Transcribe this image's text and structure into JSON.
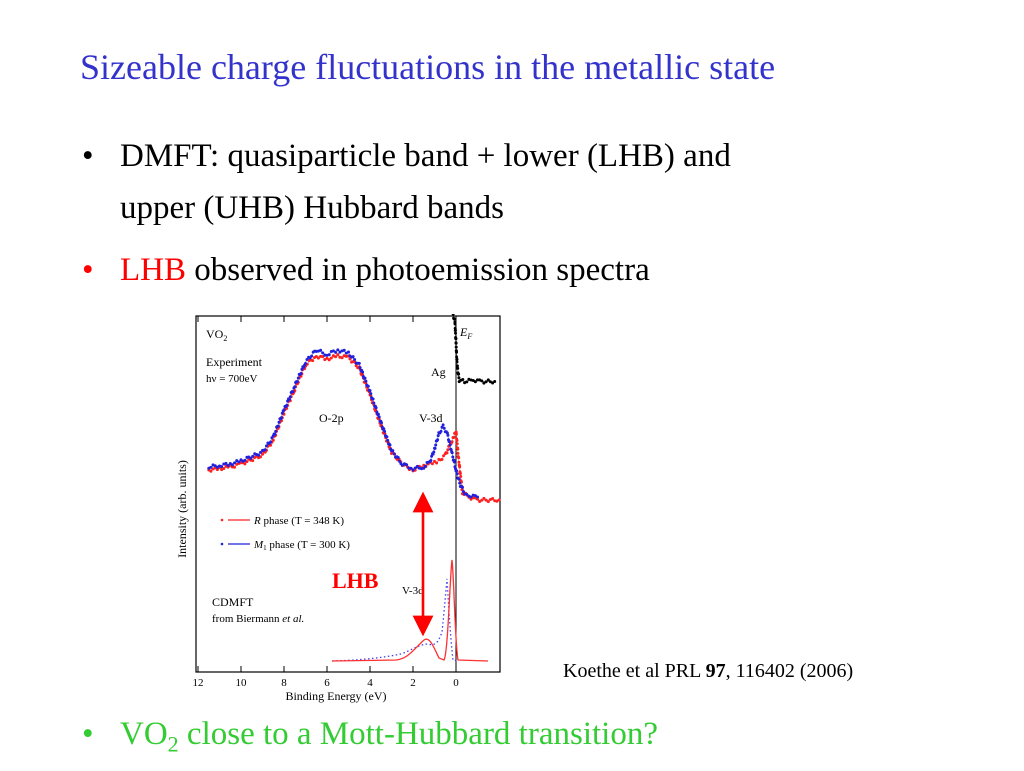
{
  "slide": {
    "title": "Sizeable charge fluctuations in the metallic state",
    "bullet1_line1": "DMFT: quasiparticle band + lower (LHB) and",
    "bullet1_line2": "upper (UHB) Hubbard bands",
    "bullet2_red": "LHB",
    "bullet2_rest": " observed in photoemission spectra",
    "bullet3_pre": "VO",
    "bullet3_sub": "2",
    "bullet3_post": " close to a Mott-Hubbard transition?",
    "bullet_glyph": "•",
    "citation_pre": "Koethe et al PRL ",
    "citation_bold": "97",
    "citation_post": ", 116402 (2006)"
  },
  "chart_data": {
    "type": "line",
    "xlabel": "Binding Energy (eV)",
    "ylabel": "Intensity (arb. units)",
    "xlim": [
      12,
      -2.5
    ],
    "x_ticks": [
      12,
      10,
      8,
      6,
      4,
      2,
      0
    ],
    "x_reversed": true,
    "annotations": {
      "material": "VO",
      "material_sub": "2",
      "experiment": "Experiment",
      "photon": "hν = 700eV",
      "o2p": "O-2p",
      "v3d": "V-3d",
      "v3d_theory": "V-3d",
      "ag": "Ag",
      "fermi": "E",
      "fermi_sub": "F",
      "cdmft": "CDMFT",
      "from": "from Biermann ",
      "etal": "et al.",
      "lhb": "LHB"
    },
    "legend": [
      {
        "symbol": "R",
        "text": " phase (T = 348 K)",
        "color": "#ff2020"
      },
      {
        "symbol": "M",
        "symbol_sub": "1",
        "text": " phase (T = 300 K)",
        "color": "#2020dd"
      }
    ],
    "series": [
      {
        "name": "R phase (T = 348 K)",
        "color": "#ff2020",
        "style": "dots",
        "x": [
          11.5,
          11,
          10.5,
          10,
          9,
          8.5,
          8,
          7.5,
          7,
          6.5,
          6,
          5.5,
          5,
          4.5,
          4,
          3.5,
          3,
          2.5,
          2,
          1.5,
          1,
          0.8,
          0.5,
          0.3,
          0.1,
          0,
          -0.1,
          -0.3,
          -0.6,
          -1,
          -2
        ],
        "y": [
          0.2,
          0.21,
          0.22,
          0.24,
          0.3,
          0.4,
          0.58,
          0.74,
          0.9,
          0.96,
          0.94,
          0.96,
          0.95,
          0.88,
          0.7,
          0.5,
          0.32,
          0.24,
          0.2,
          0.23,
          0.25,
          0.26,
          0.3,
          0.36,
          0.42,
          0.46,
          0.3,
          0.05,
          0.02,
          0.0,
          0.0
        ]
      },
      {
        "name": "M1 phase (T = 300 K)",
        "color": "#2020dd",
        "style": "dots",
        "x": [
          11.5,
          11,
          10.5,
          10,
          9,
          8.5,
          8,
          7.5,
          7,
          6.5,
          6,
          5.5,
          5,
          4.5,
          4,
          3.5,
          3,
          2.5,
          2,
          1.5,
          1.2,
          1,
          0.8,
          0.6,
          0.4,
          0.2,
          0,
          -0.2,
          -0.4,
          -0.6,
          -1
        ],
        "y": [
          0.22,
          0.23,
          0.24,
          0.26,
          0.32,
          0.42,
          0.6,
          0.76,
          0.92,
          1.0,
          0.97,
          1.0,
          0.98,
          0.9,
          0.72,
          0.52,
          0.33,
          0.24,
          0.21,
          0.22,
          0.26,
          0.34,
          0.44,
          0.49,
          0.44,
          0.32,
          0.2,
          0.1,
          0.05,
          0.03,
          0.02
        ]
      },
      {
        "name": "Ag",
        "color": "#000000",
        "style": "dots",
        "x": [
          2.1,
          1.6,
          1.2,
          0.8,
          0.5,
          0.3,
          0.15,
          0.05,
          0,
          -0.05,
          -0.15,
          -0.4,
          -0.8,
          -1.2,
          -1.8
        ],
        "y": [
          1.3,
          1.3,
          1.31,
          1.3,
          1.29,
          1.28,
          1.25,
          1.18,
          1.05,
          0.9,
          0.8,
          0.79,
          0.8,
          0.79,
          0.79
        ]
      }
    ]
  }
}
